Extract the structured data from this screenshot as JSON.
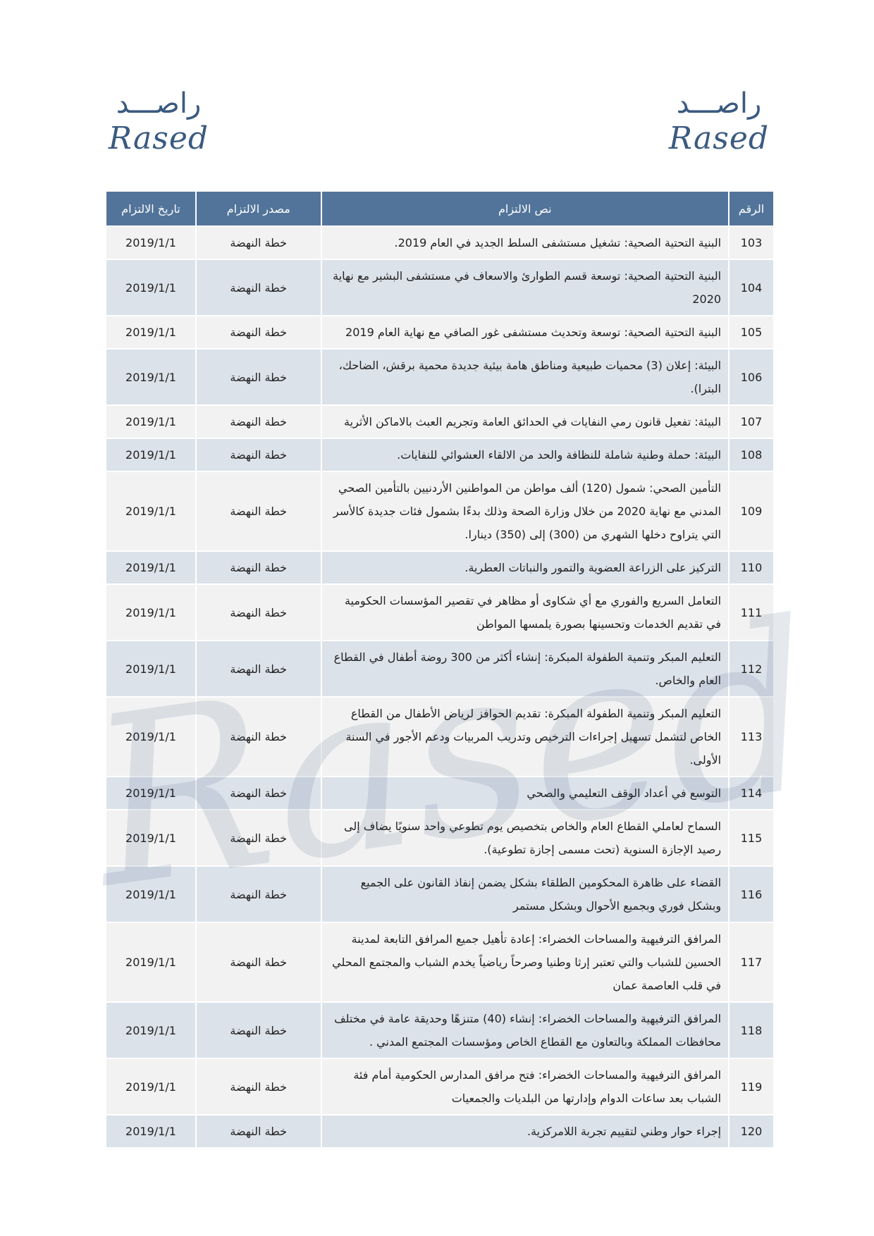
{
  "logo_left": {
    "arabic": "راصـــد",
    "latin": "Rased"
  },
  "logo_right": {
    "arabic": "راصـــد",
    "latin": "Rased"
  },
  "watermark": "Rased",
  "table": {
    "header": [
      "الرقم",
      "نص الالتزام",
      "مصدر الالتزام",
      "تاريخ الالتزام"
    ],
    "rows": [
      [
        "103",
        "البنية التحتية الصحية: تشغيل مستشفى السلط الجديد في العام 2019.",
        "خطة النهضة",
        "2019/1/1"
      ],
      [
        "104",
        "البنية التحتية الصحية: توسعة قسم الطوارئ والاسعاف في مستشفى البشير مع نهاية 2020",
        "خطة النهضة",
        "2019/1/1"
      ],
      [
        "105",
        "البنية التحتية الصحية: توسعة وتحديث مستشفى غور الصافي مع نهاية العام 2019",
        "خطة النهضة",
        "2019/1/1"
      ],
      [
        "106",
        "البيئة: إعلان (3) محميات طبيعية ومناطق هامة بيئية جديدة محمية برقش، الضاحك، البترا).",
        "خطة النهضة",
        "2019/1/1"
      ],
      [
        "107",
        "البيئة: تفعيل قانون رمي النفايات في الحدائق العامة وتجريم العبث بالاماكن الأثرية",
        "خطة النهضة",
        "2019/1/1"
      ],
      [
        "108",
        "البيئة: حملة وطنية شاملة للنظافة والحد من الالقاء العشوائي للنفايات.",
        "خطة النهضة",
        "2019/1/1"
      ],
      [
        "109",
        "التأمين الصحي: شمول (120) ألف مواطن من المواطنين الأردنيين بالتأمين الصحي المدني مع نهاية 2020 من خلال وزارة الصحة وذلك بدءًا بشمول فئات جديدة كالأسر التي يتراوح دخلها الشهري من (300) إلى (350) دينارا.",
        "خطة النهضة",
        "2019/1/1"
      ],
      [
        "110",
        "التركيز على الزراعة العضوية والتمور والنباتات العطرية.",
        "خطة النهضة",
        "2019/1/1"
      ],
      [
        "111",
        "التعامل السريع والفوري مع أي شكاوى أو مظاهر في تقصير المؤسسات الحكومية في تقديم الخدمات وتحسينها بصورة يلمسها المواطن",
        "خطة النهضة",
        "2019/1/1"
      ],
      [
        "112",
        "التعليم المبكر وتنمية الطفولة المبكرة: إنشاء أكثر من 300 روضة أطفال في القطاع العام والخاص.",
        "خطة النهضة",
        "2019/1/1"
      ],
      [
        "113",
        "التعليم المبكر وتنمية الطفولة المبكرة: تقديم الحوافز لرياض الأطفال من القطاع الخاص لتشمل تسهيل إجراءات الترخيص وتدريب المربيات ودعم الأجور في السنة الأولى.",
        "خطة النهضة",
        "2019/1/1"
      ],
      [
        "114",
        "التوسع في أعداد الوقف التعليمي والصحي",
        "خطة النهضة",
        "2019/1/1"
      ],
      [
        "115",
        "السماح لعاملي القطاع العام والخاص بتخصيص يوم تطوعي واحد سنويًا يضاف إلى رصيد الإجازة السنوية (تحت مسمى إجازة تطوعية).",
        "خطة النهضة",
        "2019/1/1"
      ],
      [
        "116",
        "القضاء على ظاهرة المحكومين الطلقاء بشكل يضمن إنفاذ القانون على الجميع وبشكل فوري وبجميع الأحوال وبشكل مستمر",
        "خطة النهضة",
        "2019/1/1"
      ],
      [
        "117",
        "المرافق الترفيهية والمساحات الخضراء: إعادة تأهيل جميع المرافق التابعة لمدينة الحسين للشباب والتي تعتبر إرثا وطنيا وصرحاً رياضياً يخدم الشباب والمجتمع المحلي في قلب العاصمة عمان",
        "خطة النهضة",
        "2019/1/1"
      ],
      [
        "118",
        "المرافق الترفيهية والمساحات الخضراء: إنشاء (40) متنزهًا وحديقة عامة في مختلف محافظات المملكة وبالتعاون مع القطاع الخاص ومؤسسات المجتمع المدني .",
        "خطة النهضة",
        "2019/1/1"
      ],
      [
        "119",
        "المرافق الترفيهية والمساحات الخضراء: فتح مرافق المدارس الحكومية أمام فئة الشباب بعد ساعات الدوام وإدارتها من البلديات والجمعيات",
        "خطة النهضة",
        "2019/1/1"
      ],
      [
        "120",
        "إجراء حوار وطني لتقييم تجربة اللامركزية.",
        "خطة النهضة",
        "2019/1/1"
      ]
    ]
  }
}
